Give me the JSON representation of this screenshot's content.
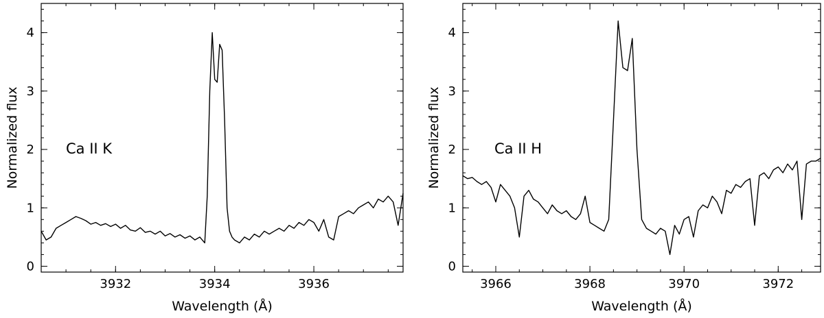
{
  "chart_data": [
    {
      "type": "line",
      "xlabel": "Wavelength (Å)",
      "ylabel": "Normalized flux",
      "annotation": "Ca II K",
      "xlim": [
        3930.5,
        3937.8
      ],
      "ylim": [
        -0.1,
        4.5
      ],
      "xticks": [
        3932,
        3934,
        3936
      ],
      "yticks": [
        0,
        1,
        2,
        3,
        4
      ],
      "grid": false,
      "color": "#000000",
      "series": [
        {
          "x": [
            3930.5,
            3930.6,
            3930.7,
            3930.8,
            3930.9,
            3931.0,
            3931.1,
            3931.2,
            3931.3,
            3931.4,
            3931.5,
            3931.6,
            3931.7,
            3931.8,
            3931.9,
            3932.0,
            3932.1,
            3932.2,
            3932.3,
            3932.4,
            3932.5,
            3932.6,
            3932.7,
            3932.8,
            3932.9,
            3933.0,
            3933.1,
            3933.2,
            3933.3,
            3933.4,
            3933.5,
            3933.6,
            3933.7,
            3933.8,
            3933.85,
            3933.9,
            3933.95,
            3934.0,
            3934.05,
            3934.1,
            3934.15,
            3934.2,
            3934.25,
            3934.3,
            3934.35,
            3934.4,
            3934.5,
            3934.6,
            3934.7,
            3934.8,
            3934.9,
            3935.0,
            3935.1,
            3935.2,
            3935.3,
            3935.4,
            3935.5,
            3935.6,
            3935.7,
            3935.8,
            3935.9,
            3936.0,
            3936.1,
            3936.2,
            3936.3,
            3936.4,
            3936.5,
            3936.6,
            3936.7,
            3936.8,
            3936.9,
            3937.0,
            3937.1,
            3937.2,
            3937.3,
            3937.4,
            3937.5,
            3937.6,
            3937.7,
            3937.8
          ],
          "y": [
            0.6,
            0.45,
            0.5,
            0.65,
            0.7,
            0.75,
            0.8,
            0.85,
            0.82,
            0.78,
            0.72,
            0.75,
            0.7,
            0.73,
            0.68,
            0.72,
            0.65,
            0.7,
            0.62,
            0.6,
            0.66,
            0.58,
            0.6,
            0.55,
            0.6,
            0.52,
            0.56,
            0.5,
            0.54,
            0.48,
            0.52,
            0.45,
            0.5,
            0.4,
            1.2,
            3.0,
            4.0,
            3.2,
            3.15,
            3.8,
            3.7,
            2.5,
            1.0,
            0.6,
            0.5,
            0.45,
            0.4,
            0.5,
            0.45,
            0.55,
            0.5,
            0.6,
            0.55,
            0.6,
            0.65,
            0.6,
            0.7,
            0.65,
            0.75,
            0.7,
            0.8,
            0.75,
            0.6,
            0.8,
            0.5,
            0.45,
            0.85,
            0.9,
            0.95,
            0.9,
            1.0,
            1.05,
            1.1,
            1.0,
            1.15,
            1.1,
            1.2,
            1.1,
            0.7,
            1.25
          ]
        }
      ]
    },
    {
      "type": "line",
      "xlabel": "Wavelength (Å)",
      "ylabel": "Normalized flux",
      "annotation": "Ca II H",
      "xlim": [
        3965.3,
        3972.9
      ],
      "ylim": [
        -0.1,
        4.5
      ],
      "xticks": [
        3966,
        3968,
        3970,
        3972
      ],
      "yticks": [
        0,
        1,
        2,
        3,
        4
      ],
      "grid": false,
      "color": "#000000",
      "series": [
        {
          "x": [
            3965.3,
            3965.4,
            3965.5,
            3965.6,
            3965.7,
            3965.8,
            3965.9,
            3966.0,
            3966.1,
            3966.2,
            3966.3,
            3966.4,
            3966.5,
            3966.6,
            3966.7,
            3966.8,
            3966.9,
            3967.0,
            3967.1,
            3967.2,
            3967.3,
            3967.4,
            3967.5,
            3967.6,
            3967.7,
            3967.8,
            3967.9,
            3968.0,
            3968.1,
            3968.2,
            3968.3,
            3968.4,
            3968.5,
            3968.6,
            3968.7,
            3968.8,
            3968.9,
            3969.0,
            3969.1,
            3969.2,
            3969.3,
            3969.4,
            3969.5,
            3969.6,
            3969.7,
            3969.8,
            3969.9,
            3970.0,
            3970.1,
            3970.2,
            3970.3,
            3970.4,
            3970.5,
            3970.6,
            3970.7,
            3970.8,
            3970.9,
            3971.0,
            3971.1,
            3971.2,
            3971.3,
            3971.4,
            3971.5,
            3971.6,
            3971.7,
            3971.8,
            3971.9,
            3972.0,
            3972.1,
            3972.2,
            3972.3,
            3972.4,
            3972.5,
            3972.6,
            3972.7,
            3972.8,
            3972.9
          ],
          "y": [
            1.55,
            1.5,
            1.52,
            1.45,
            1.4,
            1.45,
            1.35,
            1.1,
            1.4,
            1.3,
            1.2,
            1.0,
            0.5,
            1.2,
            1.3,
            1.15,
            1.1,
            1.0,
            0.9,
            1.05,
            0.95,
            0.9,
            0.95,
            0.85,
            0.8,
            0.9,
            1.2,
            0.75,
            0.7,
            0.65,
            0.6,
            0.8,
            2.5,
            4.2,
            3.4,
            3.35,
            3.9,
            2.0,
            0.8,
            0.65,
            0.6,
            0.55,
            0.65,
            0.6,
            0.2,
            0.7,
            0.55,
            0.8,
            0.85,
            0.5,
            0.95,
            1.05,
            1.0,
            1.2,
            1.1,
            0.9,
            1.3,
            1.25,
            1.4,
            1.35,
            1.45,
            1.5,
            0.7,
            1.55,
            1.6,
            1.5,
            1.65,
            1.7,
            1.6,
            1.75,
            1.65,
            1.8,
            0.8,
            1.75,
            1.8,
            1.8,
            1.85
          ]
        }
      ]
    }
  ]
}
